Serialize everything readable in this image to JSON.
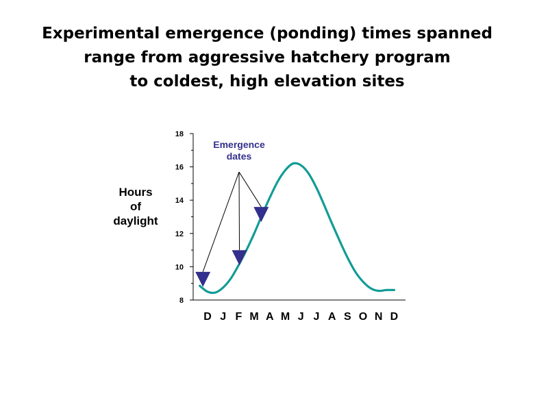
{
  "title": {
    "line1": "Experimental emergence (ponding) times spanned",
    "line2": "range from aggressive hatchery program",
    "line3": "to coldest, high elevation sites"
  },
  "ylabel": {
    "line1": "Hours",
    "line2": "of",
    "line3": "daylight"
  },
  "annotation": {
    "line1": "Emergence",
    "line2": "dates"
  },
  "chart_data": {
    "type": "line",
    "title": "Experimental emergence (ponding) times spanned range from aggressive hatchery program to coldest, high elevation sites",
    "ylabel": "Hours of daylight",
    "xlabel": "",
    "ylim": [
      8,
      18
    ],
    "yticks": [
      8,
      10,
      12,
      14,
      16,
      18
    ],
    "xlim": [
      0,
      12
    ],
    "categories": [
      "D",
      "J",
      "F",
      "M",
      "A",
      "M",
      "J",
      "J",
      "A",
      "S",
      "O",
      "N",
      "D"
    ],
    "series": [
      {
        "name": "",
        "color": "#129b96",
        "x": [
          -0.5,
          0,
          0.5,
          1,
          1.5,
          2,
          2.5,
          3,
          3.5,
          4,
          4.5,
          5,
          5.5,
          6,
          6.5,
          7,
          7.5,
          8,
          8.5,
          9,
          9.5,
          10,
          10.5,
          11,
          11.5,
          12
        ],
        "y": [
          8.85,
          8.5,
          8.45,
          8.75,
          9.3,
          10.1,
          11.0,
          12.0,
          13.1,
          14.15,
          15.1,
          15.8,
          16.2,
          16.1,
          15.6,
          14.75,
          13.7,
          12.6,
          11.55,
          10.55,
          9.7,
          9.1,
          8.7,
          8.55,
          8.6,
          8.6
        ]
      }
    ],
    "markers": [
      {
        "label": "Emergence dates",
        "x": -0.3,
        "y": 9.2,
        "color": "#332f8c"
      },
      {
        "label": "Emergence dates",
        "x": 2.05,
        "y": 10.5,
        "color": "#332f8c"
      },
      {
        "label": "Emergence dates",
        "x": 3.45,
        "y": 13.1,
        "color": "#332f8c"
      }
    ],
    "grid": false
  }
}
